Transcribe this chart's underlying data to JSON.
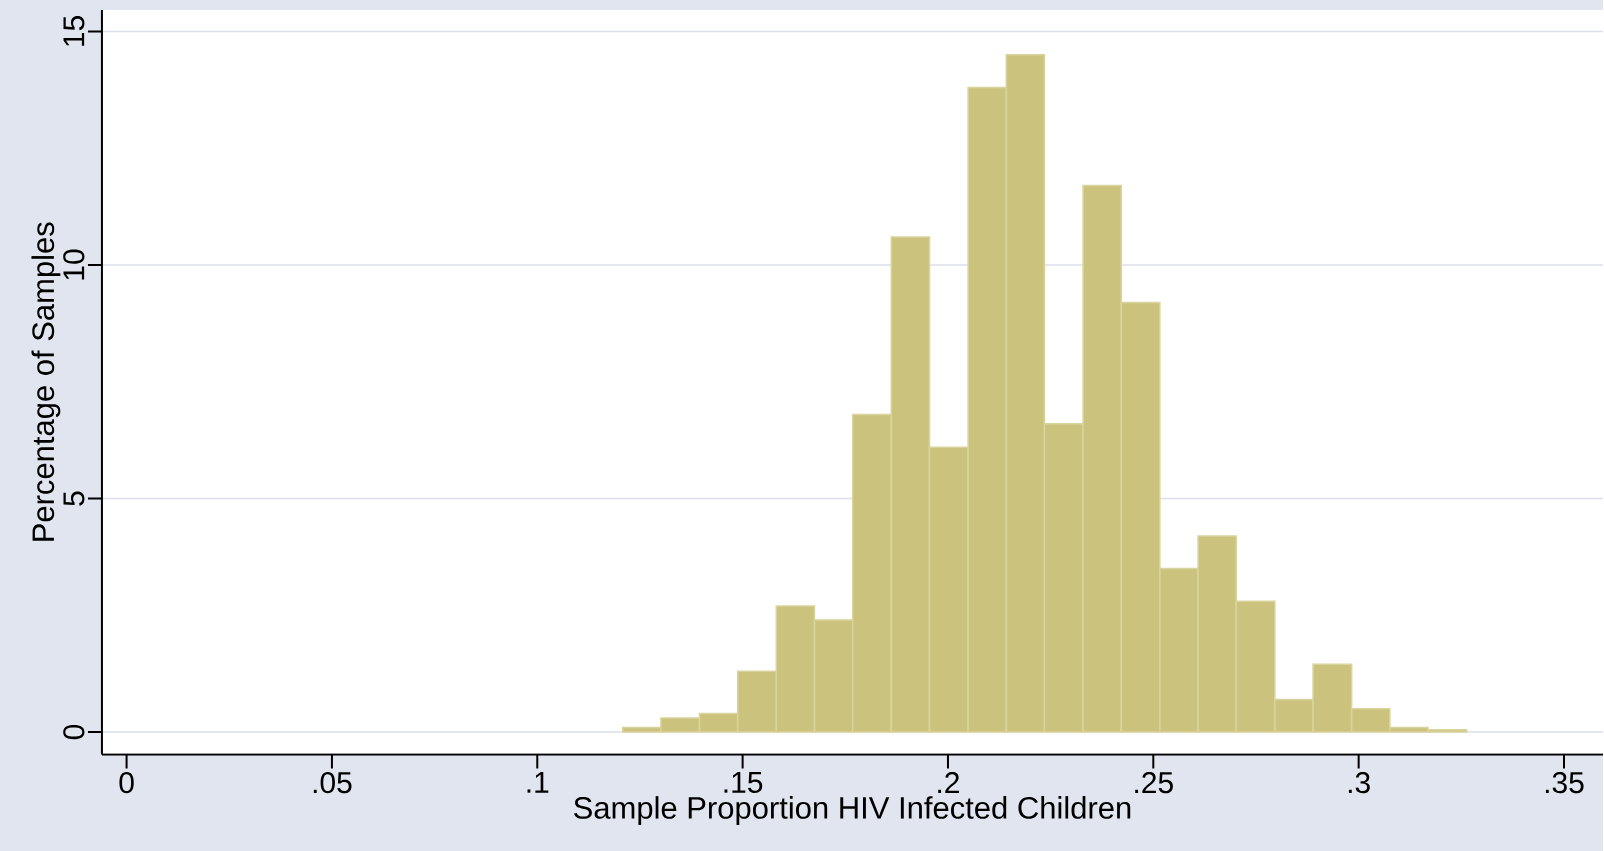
{
  "chart_data": {
    "type": "histogram",
    "xlabel": "Sample Proportion HIV Infected Children",
    "ylabel": "Percentage of Samples",
    "bins": [
      0.1208,
      0.1301,
      0.1395,
      0.1488,
      0.1582,
      0.1675,
      0.1768,
      0.1862,
      0.1955,
      0.2049,
      0.2142,
      0.2235,
      0.2329,
      0.2422,
      0.2516,
      0.2609,
      0.2702,
      0.2796,
      0.2889,
      0.2983,
      0.3076,
      0.3169,
      0.3263
    ],
    "values": [
      0.1,
      0.3,
      0.4,
      1.3,
      2.7,
      2.4,
      6.8,
      10.6,
      6.1,
      13.8,
      14.5,
      6.6,
      11.7,
      9.2,
      3.5,
      4.2,
      2.8,
      0.7,
      1.45,
      0.5,
      0.1,
      0.05
    ],
    "color": "#cbc37d",
    "xlim": [
      -0.006,
      0.3595
    ],
    "ylim": [
      -0.48,
      15.46
    ],
    "xticks": [
      {
        "value": 0,
        "label": "0"
      },
      {
        "value": 0.05,
        "label": ".05"
      },
      {
        "value": 0.1,
        "label": ".1"
      },
      {
        "value": 0.15,
        "label": ".15"
      },
      {
        "value": 0.2,
        "label": ".2"
      },
      {
        "value": 0.25,
        "label": ".25"
      },
      {
        "value": 0.3,
        "label": ".3"
      },
      {
        "value": 0.35,
        "label": ".35"
      }
    ],
    "yticks": [
      0,
      5,
      10,
      15
    ],
    "grid": "y"
  }
}
